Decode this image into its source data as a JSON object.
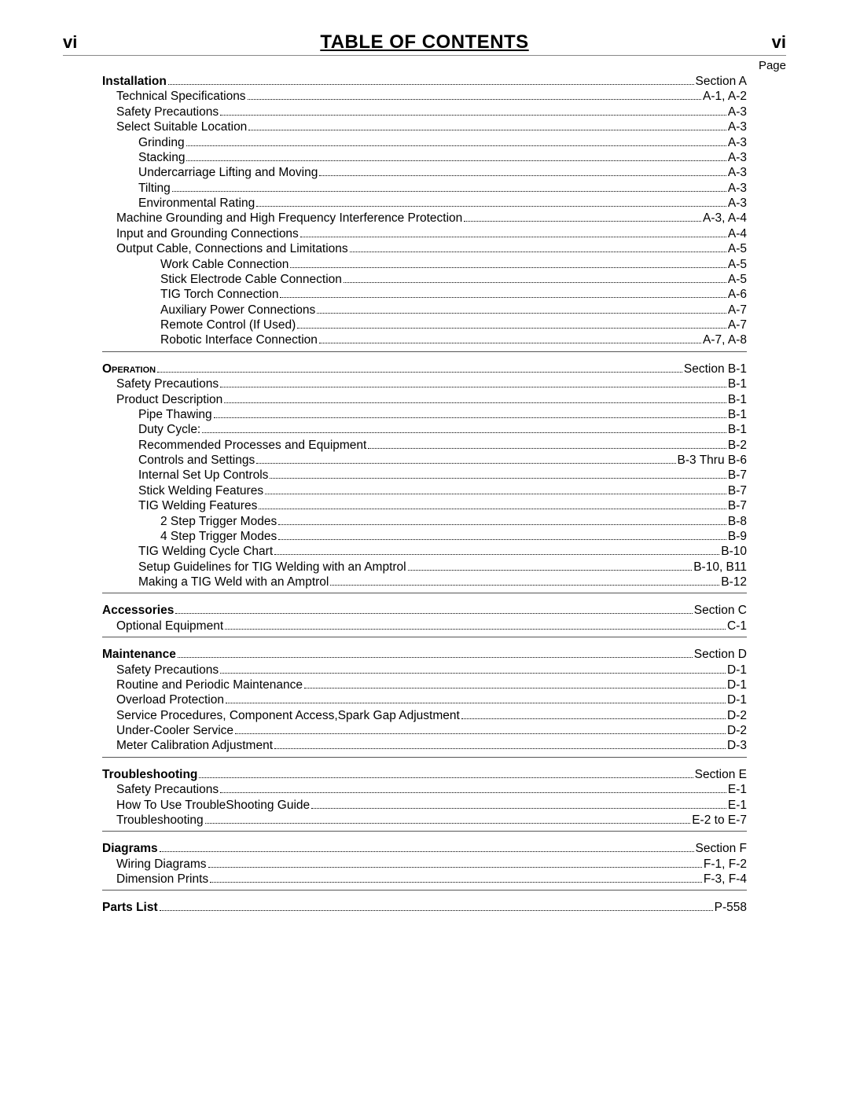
{
  "header": {
    "page_number_left": "vi",
    "page_number_right": "vi",
    "title": "TABLE OF CONTENTS",
    "page_label": "Page"
  },
  "sections": [
    {
      "entries": [
        {
          "label": "Installation",
          "page": "Section  A",
          "indent": 0,
          "bold": true
        },
        {
          "label": "Technical Specifications",
          "page": "A-1, A-2",
          "indent": 1
        },
        {
          "label": "Safety Precautions",
          "page": "A-3",
          "indent": 1
        },
        {
          "label": "Select Suitable Location",
          "page": "A-3",
          "indent": 1
        },
        {
          "label": "Grinding",
          "page": "A-3",
          "indent": 2
        },
        {
          "label": "Stacking",
          "page": "A-3",
          "indent": 2
        },
        {
          "label": "Undercarriage Lifting and Moving",
          "page": "A-3",
          "indent": 2
        },
        {
          "label": "Tilting",
          "page": "A-3",
          "indent": 2
        },
        {
          "label": "Environmental Rating",
          "page": "A-3",
          "indent": 2
        },
        {
          "label": "Machine Grounding and High Frequency Interference Protection",
          "page": "A-3, A-4",
          "indent": 1
        },
        {
          "label": "Input  and Grounding Connections",
          "page": "A-4",
          "indent": 1
        },
        {
          "label": "Output Cable, Connections and Limitations",
          "page": "A-5",
          "indent": 1
        },
        {
          "label": "Work Cable Connection",
          "page": "A-5",
          "indent": 3
        },
        {
          "label": "Stick Electrode Cable Connection",
          "page": "A-5",
          "indent": 3
        },
        {
          "label": "TIG Torch Connection",
          "page": "A-6",
          "indent": 3
        },
        {
          "label": "Auxiliary Power Connections",
          "page": "A-7",
          "indent": 3
        },
        {
          "label": "Remote Control (If Used)",
          "page": "A-7",
          "indent": 3
        },
        {
          "label": "Robotic Interface Connection",
          "page": "A-7, A-8",
          "indent": 3
        }
      ]
    },
    {
      "entries": [
        {
          "label": "Operation",
          "page": "Section B-1",
          "indent": 0,
          "smallcaps": true
        },
        {
          "label": "Safety Precautions",
          "page": "B-1",
          "indent": 1
        },
        {
          "label": "Product Description",
          "page": "B-1",
          "indent": 1
        },
        {
          "label": "Pipe Thawing",
          "page": "B-1",
          "indent": 2
        },
        {
          "label": "Duty Cycle:",
          "page": "B-1",
          "indent": 2
        },
        {
          "label": "Recommended Processes and Equipment",
          "page": "B-2",
          "indent": 2
        },
        {
          "label": "Controls and Settings",
          "page": "B-3 Thru B-6",
          "indent": 2
        },
        {
          "label": "Internal Set Up Controls",
          "page": "B-7",
          "indent": 2
        },
        {
          "label": "Stick Welding Features",
          "page": "B-7",
          "indent": 2
        },
        {
          "label": "TIG Welding Features",
          "page": "B-7",
          "indent": 2
        },
        {
          "label": "2 Step Trigger Modes",
          "page": "B-8",
          "indent": 3
        },
        {
          "label": "4 Step Trigger Modes",
          "page": "B-9",
          "indent": 3
        },
        {
          "label": "TIG Welding Cycle Chart",
          "page": "B-10",
          "indent": 2
        },
        {
          "label": "Setup Guidelines for TIG Welding with an Amptrol",
          "page": "B-10, B11",
          "indent": 2
        },
        {
          "label": "Making a TIG Weld with an Amptrol",
          "page": "B-12",
          "indent": 2
        }
      ]
    },
    {
      "entries": [
        {
          "label": "Accessories",
          "page": "Section C",
          "indent": 0,
          "bold": true
        },
        {
          "label": "Optional Equipment",
          "page": "C-1",
          "indent": 1
        }
      ]
    },
    {
      "entries": [
        {
          "label": "Maintenance",
          "page": "Section D",
          "indent": 0,
          "bold": true
        },
        {
          "label": "Safety Precautions",
          "page": "D-1",
          "indent": 1
        },
        {
          "label": "Routine and Periodic Maintenance",
          "page": "D-1",
          "indent": 1
        },
        {
          "label": "Overload Protection",
          "page": "D-1",
          "indent": 1
        },
        {
          "label": "Service Procedures, Component Access,Spark Gap Adjustment",
          "page": "D-2",
          "indent": 1
        },
        {
          "label": "Under-Cooler Service",
          "page": "D-2",
          "indent": 1
        },
        {
          "label": "Meter Calibration Adjustment",
          "page": "D-3",
          "indent": 1
        }
      ]
    },
    {
      "entries": [
        {
          "label": "Troubleshooting",
          "page": "Section E",
          "indent": 0,
          "bold": true
        },
        {
          "label": "Safety Precautions",
          "page": "E-1",
          "indent": 1
        },
        {
          "label": "How To Use TroubleShooting Guide",
          "page": "E-1",
          "indent": 1
        },
        {
          "label": "Troubleshooting",
          "page": "E-2 to E-7",
          "indent": 1
        }
      ]
    },
    {
      "entries": [
        {
          "label": "Diagrams",
          "page": "Section F",
          "indent": 0,
          "bold": true
        },
        {
          "label": "Wiring Diagrams",
          "page": "F-1, F-2",
          "indent": 1
        },
        {
          "label": "Dimension Prints",
          "page": "F-3, F-4",
          "indent": 1
        }
      ]
    },
    {
      "no_border": true,
      "entries": [
        {
          "label": "Parts List",
          "page": "P-558",
          "indent": 0,
          "bold": true
        }
      ]
    }
  ]
}
